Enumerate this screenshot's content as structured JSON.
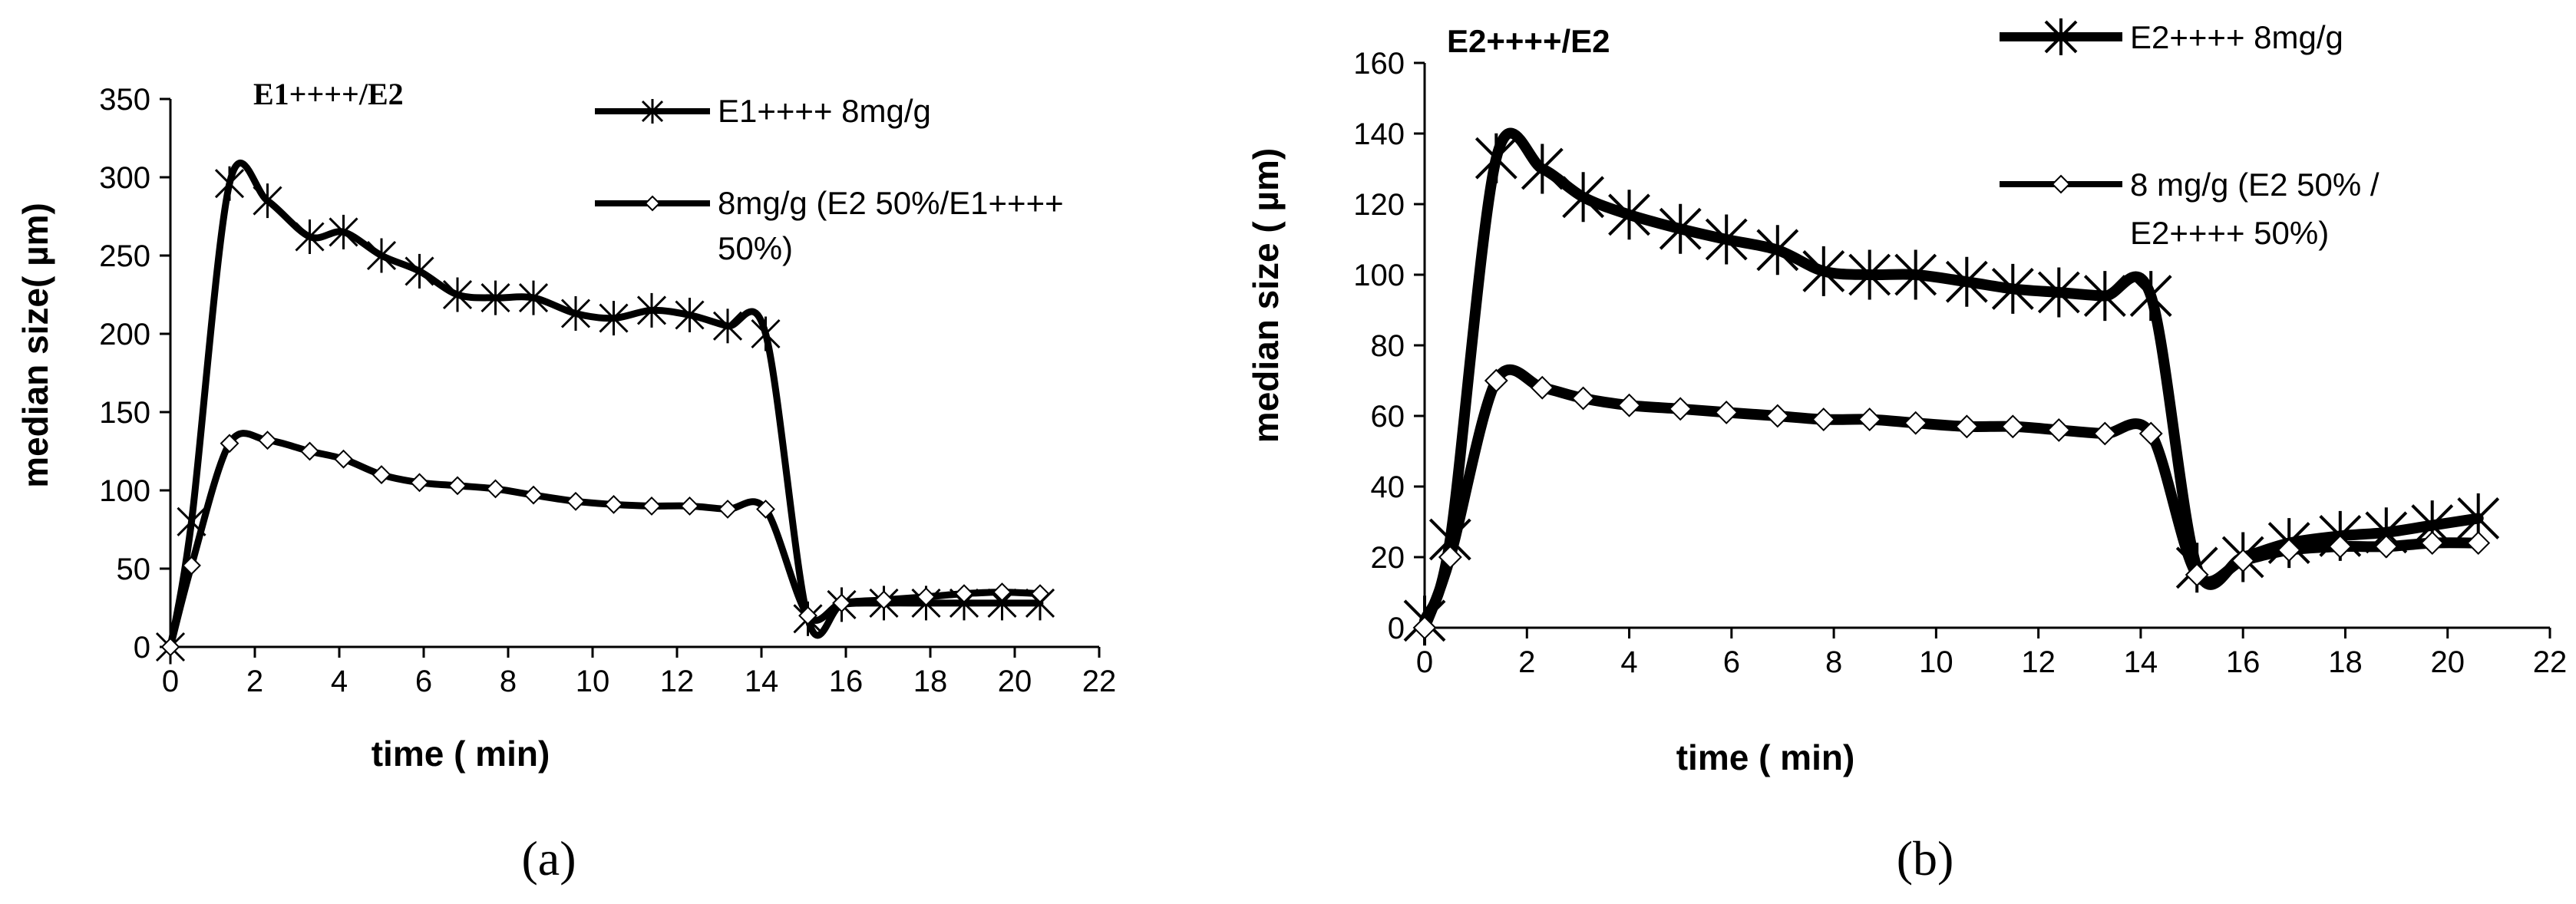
{
  "chart_data": [
    {
      "type": "line",
      "title": "E1++++/E2",
      "caption_letter": "a",
      "xlabel": "time ( min)",
      "ylabel": "median size( µm)",
      "xlim": [
        0,
        22
      ],
      "ylim": [
        0,
        350
      ],
      "x_ticks": [
        0,
        2,
        4,
        6,
        8,
        10,
        12,
        14,
        16,
        18,
        20,
        22
      ],
      "y_ticks": [
        0,
        50,
        100,
        150,
        200,
        250,
        300,
        350
      ],
      "grid": false,
      "legend_position": "top-right",
      "series": [
        {
          "name": "E1++++ 8mg/g",
          "marker": "asterisk",
          "x": [
            0,
            0.5,
            1.4,
            2.3,
            3.3,
            4.1,
            5.0,
            5.9,
            6.8,
            7.7,
            8.6,
            9.6,
            10.5,
            11.4,
            12.3,
            13.2,
            14.1,
            15.1,
            15.9,
            16.9,
            17.9,
            18.8,
            19.7,
            20.6
          ],
          "y": [
            0,
            80,
            296,
            285,
            262,
            265,
            250,
            240,
            225,
            223,
            223,
            213,
            210,
            215,
            212,
            205,
            200,
            18,
            27,
            28,
            28,
            28,
            28,
            28
          ]
        },
        {
          "name": "8mg/g (E2 50%/E1++++ 50%)",
          "marker": "diamond",
          "x": [
            0,
            0.5,
            1.4,
            2.3,
            3.3,
            4.1,
            5.0,
            5.9,
            6.8,
            7.7,
            8.6,
            9.6,
            10.5,
            11.4,
            12.3,
            13.2,
            14.1,
            15.1,
            15.9,
            16.9,
            17.9,
            18.8,
            19.7,
            20.6
          ],
          "y": [
            0,
            52,
            130,
            132,
            125,
            120,
            110,
            105,
            103,
            101,
            97,
            93,
            91,
            90,
            90,
            88,
            88,
            20,
            28,
            30,
            32,
            34,
            35,
            34
          ]
        }
      ]
    },
    {
      "type": "line",
      "title": "E2++++/E2",
      "caption_letter": "b",
      "xlabel": "time ( min)",
      "ylabel": "median size ( µm)",
      "xlim": [
        0,
        22
      ],
      "ylim": [
        0,
        160
      ],
      "x_ticks": [
        0,
        2,
        4,
        6,
        8,
        10,
        12,
        14,
        16,
        18,
        20,
        22
      ],
      "y_ticks": [
        0,
        20,
        40,
        60,
        80,
        100,
        120,
        140,
        160
      ],
      "grid": false,
      "legend_position": "top-right",
      "series": [
        {
          "name": "E2++++ 8mg/g",
          "marker": "asterisk",
          "x": [
            0,
            0.5,
            1.4,
            2.3,
            3.1,
            4.0,
            5.0,
            5.9,
            6.9,
            7.8,
            8.7,
            9.6,
            10.6,
            11.5,
            12.4,
            13.3,
            14.2,
            15.1,
            16.0,
            16.9,
            17.9,
            18.8,
            19.7,
            20.6
          ],
          "y": [
            2,
            25,
            133,
            130,
            122,
            117,
            113,
            110,
            107,
            101,
            100,
            100,
            98,
            96,
            95,
            94,
            94,
            17,
            20,
            24,
            26,
            27,
            29,
            31
          ]
        },
        {
          "name": "8 mg/g (E2 50% / E2++++ 50%)",
          "marker": "diamond",
          "x": [
            0,
            0.5,
            1.4,
            2.3,
            3.1,
            4.0,
            5.0,
            5.9,
            6.9,
            7.8,
            8.7,
            9.6,
            10.6,
            11.5,
            12.4,
            13.3,
            14.2,
            15.1,
            16.0,
            16.9,
            17.9,
            18.8,
            19.7,
            20.6
          ],
          "y": [
            0,
            20,
            70,
            68,
            65,
            63,
            62,
            61,
            60,
            59,
            59,
            58,
            57,
            57,
            56,
            55,
            55,
            15,
            19,
            22,
            23,
            23,
            24,
            24
          ]
        }
      ]
    }
  ],
  "legend_a": {
    "item1": "E1++++ 8mg/g",
    "item2_line1": "8mg/g (E2 50%/E1++++",
    "item2_line2": "50%)"
  },
  "legend_b": {
    "item1": "E2++++ 8mg/g",
    "item2_line1": "8 mg/g (E2 50% /",
    "item2_line2": "E2++++ 50%)"
  },
  "captions": {
    "a": "(a)",
    "b": "(b)"
  }
}
